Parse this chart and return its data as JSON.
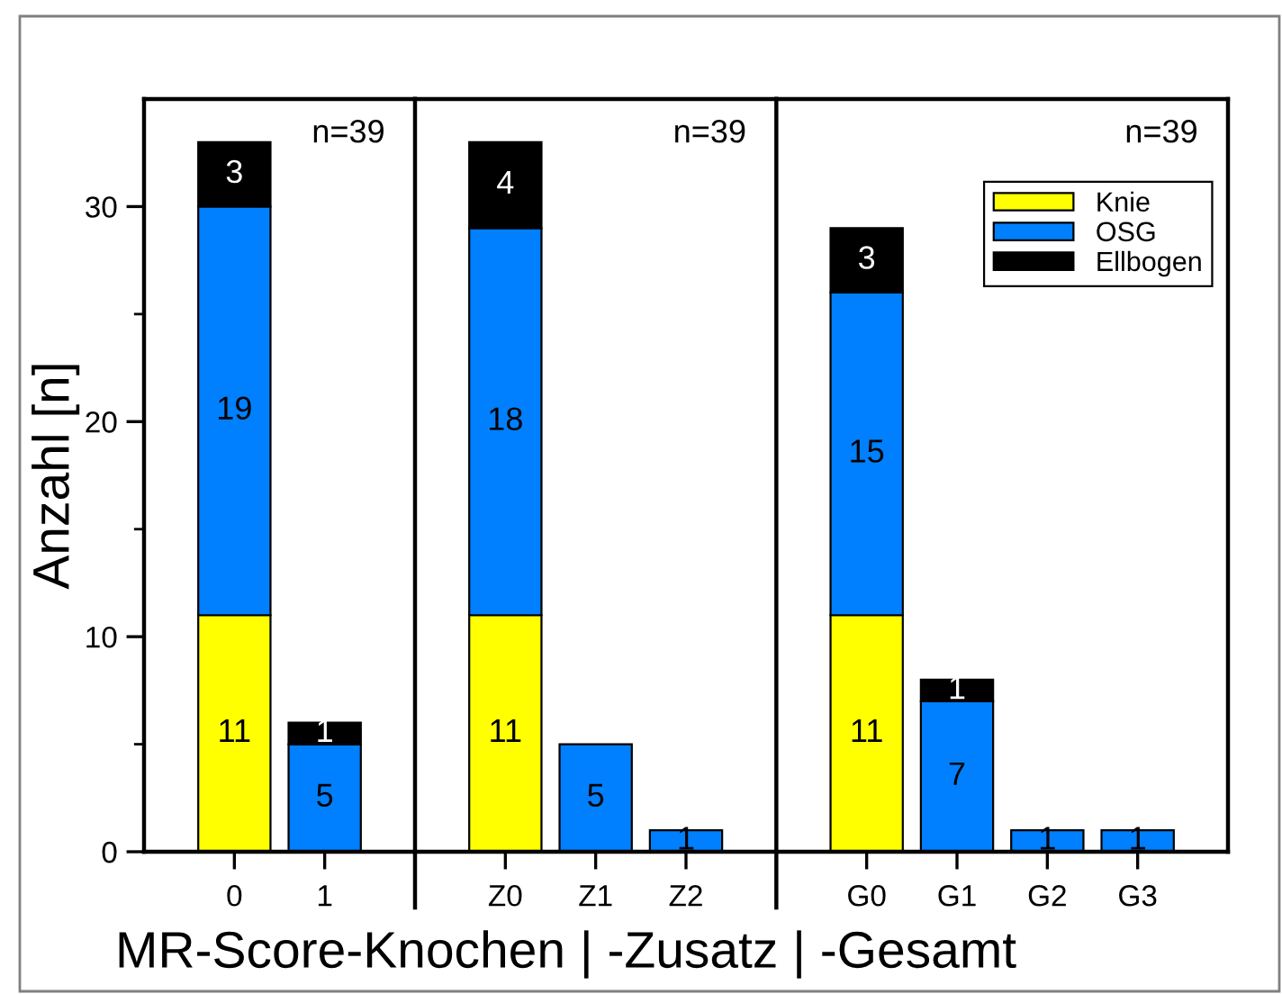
{
  "chart_data": [
    {
      "type": "bar",
      "stacked": true,
      "ylabel": "Anzahl [n]",
      "xlabel": "MR-Score-Knochen | -Zusatz | -Gesamt",
      "categories": [
        "0",
        "1"
      ],
      "series": [
        {
          "color": "#ffff00",
          "values": [
            11,
            null
          ]
        },
        {
          "color": "#0080ff",
          "values": [
            19,
            5
          ]
        },
        {
          "color": "#000000",
          "values": [
            3,
            1
          ]
        }
      ],
      "ylim": [
        0,
        35
      ],
      "yticks": [
        0,
        {
          "value": 5,
          "label": null
        },
        10,
        {
          "value": 15,
          "label": null
        },
        20,
        {
          "value": 25,
          "label": null
        },
        30
      ],
      "data_labels": true,
      "annotations": [
        "n=39"
      ]
    },
    {
      "type": "bar",
      "stacked": true,
      "categories": [
        "Z0",
        "Z1",
        "Z2"
      ],
      "series": [
        {
          "color": "#ffff00",
          "values": [
            11,
            null,
            null
          ]
        },
        {
          "color": "#0080ff",
          "values": [
            18,
            5,
            1
          ]
        },
        {
          "color": "#000000",
          "values": [
            4,
            null,
            null
          ]
        }
      ],
      "ylim": [
        0,
        35
      ],
      "tick_labels": "x",
      "data_labels": true,
      "annotations": [
        "n=39"
      ]
    },
    {
      "type": "bar",
      "stacked": true,
      "categories": [
        "G0",
        "G1",
        "G2",
        "G3"
      ],
      "series": [
        {
          "name": "Knie",
          "color": "#ffff00",
          "values": [
            11,
            null,
            null,
            null
          ]
        },
        {
          "name": "OSG",
          "color": "#0080ff",
          "values": [
            15,
            7,
            1,
            1
          ]
        },
        {
          "name": "Ellbogen",
          "color": "#000000",
          "values": [
            3,
            1,
            null,
            null
          ]
        }
      ],
      "ylim": [
        0,
        35
      ],
      "tick_labels": "x",
      "legend": "top right",
      "data_labels": true,
      "annotations": [
        "n=39"
      ]
    }
  ]
}
